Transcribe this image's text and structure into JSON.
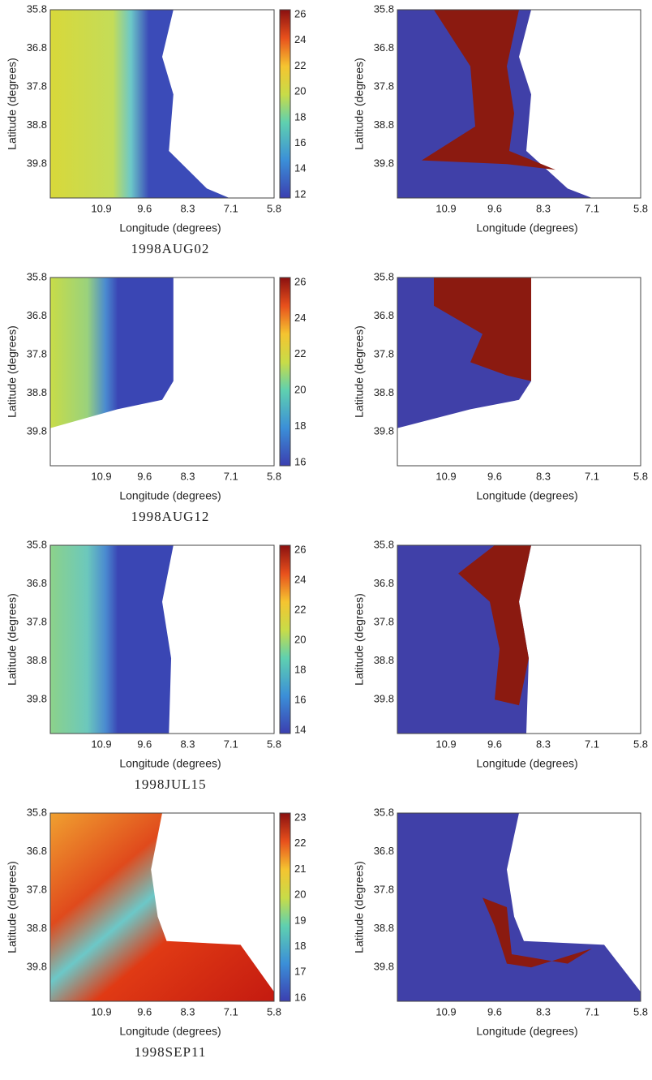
{
  "rows": [
    {
      "caption": "1998AUG02",
      "left": {
        "xticks": [
          10.9,
          9.6,
          8.3,
          7.1,
          5.8
        ],
        "yticks": [
          35.8,
          36.8,
          37.8,
          38.8,
          39.8
        ],
        "xlabel": "Longitude (degrees)",
        "ylabel": "Latitude (degrees)",
        "colorbar_ticks": [
          12,
          14,
          16,
          18,
          20,
          22,
          24,
          26
        ]
      },
      "right": {
        "xticks": [
          10.9,
          9.6,
          8.3,
          7.1,
          5.8
        ],
        "yticks": [
          35.8,
          36.8,
          37.8,
          38.8,
          39.8
        ],
        "xlabel": "Longitude (degrees)",
        "ylabel": "Latitude (degrees)"
      }
    },
    {
      "caption": "1998AUG12",
      "left": {
        "xticks": [
          10.9,
          9.6,
          8.3,
          7.1,
          5.8
        ],
        "yticks": [
          35.8,
          36.8,
          37.8,
          38.8,
          39.8
        ],
        "xlabel": "Longitude (degrees)",
        "ylabel": "Latitude (degrees)",
        "colorbar_ticks": [
          16,
          18,
          20,
          22,
          24,
          26
        ]
      },
      "right": {
        "xticks": [
          10.9,
          9.6,
          8.3,
          7.1,
          5.8
        ],
        "yticks": [
          35.8,
          36.8,
          37.8,
          38.8,
          39.8
        ],
        "xlabel": "Longitude (degrees)",
        "ylabel": "Latitude (degrees)"
      }
    },
    {
      "caption": "1998JUL15",
      "left": {
        "xticks": [
          10.9,
          9.6,
          8.3,
          7.1,
          5.8
        ],
        "yticks": [
          35.8,
          36.8,
          37.8,
          38.8,
          39.8
        ],
        "xlabel": "Longitude (degrees)",
        "ylabel": "Latitude (degrees)",
        "colorbar_ticks": [
          14,
          16,
          18,
          20,
          22,
          24,
          26
        ]
      },
      "right": {
        "xticks": [
          10.9,
          9.6,
          8.3,
          7.1,
          5.8
        ],
        "yticks": [
          35.8,
          36.8,
          37.8,
          38.8,
          39.8
        ],
        "xlabel": "Longitude (degrees)",
        "ylabel": "Latitude (degrees)"
      }
    },
    {
      "caption": "1998SEP11",
      "left": {
        "xticks": [
          10.9,
          9.6,
          8.3,
          7.1,
          5.8
        ],
        "yticks": [
          35.8,
          36.8,
          37.8,
          38.8,
          39.8
        ],
        "xlabel": "Longitude (degrees)",
        "ylabel": "Latitude (degrees)",
        "colorbar_ticks": [
          16,
          17,
          18,
          19,
          20,
          21,
          22,
          23
        ]
      },
      "right": {
        "xticks": [
          10.9,
          9.6,
          8.3,
          7.1,
          5.8
        ],
        "yticks": [
          35.8,
          36.8,
          37.8,
          38.8,
          39.8
        ],
        "xlabel": "Longitude (degrees)",
        "ylabel": "Latitude (degrees)"
      }
    }
  ]
}
